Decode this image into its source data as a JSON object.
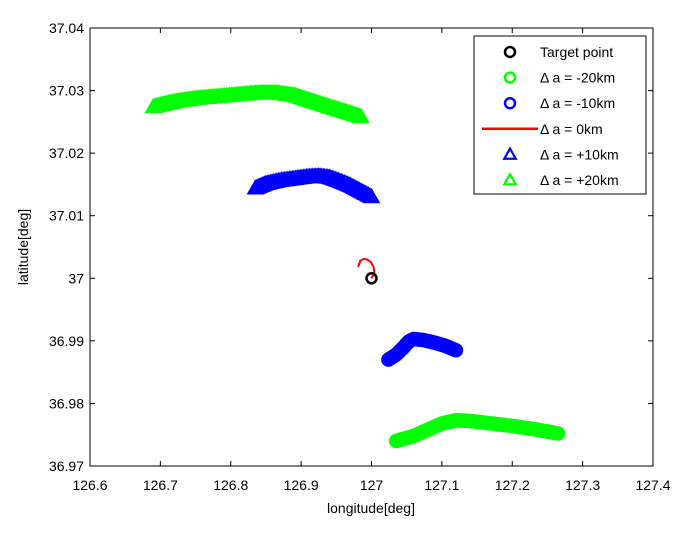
{
  "chart_data": {
    "type": "scatter",
    "xlabel": "longitude[deg]",
    "ylabel": "latitude[deg]",
    "xlim": [
      126.6,
      127.4
    ],
    "ylim": [
      36.97,
      37.04
    ],
    "xticks": [
      126.6,
      126.7,
      126.8,
      126.9,
      127,
      127.1,
      127.2,
      127.3,
      127.4
    ],
    "xtick_labels": [
      "126.6",
      "126.7",
      "126.8",
      "126.9",
      "127",
      "127.1",
      "127.2",
      "127.3",
      "127.4"
    ],
    "yticks": [
      36.97,
      36.98,
      36.99,
      37,
      37.01,
      37.02,
      37.03,
      37.04
    ],
    "ytick_labels": [
      "36.97",
      "36.98",
      "36.99",
      "37",
      "37.01",
      "37.02",
      "37.03",
      "37.04"
    ],
    "grid": false,
    "legend_position": "top-right",
    "series": [
      {
        "name": "Target point",
        "marker": "circle",
        "color": "#000000",
        "x": [
          127.0
        ],
        "y": [
          37.0
        ]
      },
      {
        "name": "Δ a = -20km",
        "marker": "circle",
        "color": "#00ff00",
        "x": [
          127.035,
          127.06,
          127.08,
          127.1,
          127.12,
          127.14,
          127.17,
          127.2,
          127.23,
          127.265
        ],
        "y": [
          36.974,
          36.9748,
          36.9758,
          36.9768,
          36.9773,
          36.9772,
          36.9768,
          36.9764,
          36.9759,
          36.9752
        ]
      },
      {
        "name": "Δ a = -10km",
        "marker": "circle",
        "color": "#0000ff",
        "x": [
          127.024,
          127.035,
          127.045,
          127.053,
          127.06,
          127.075,
          127.09,
          127.105,
          127.12
        ],
        "y": [
          36.987,
          36.9878,
          36.9889,
          36.9899,
          36.9903,
          36.9901,
          36.9897,
          36.9892,
          36.9885
        ]
      },
      {
        "name": "Δ a = 0km",
        "marker": "line",
        "color": "#ff0000",
        "x": [
          127.0,
          127.004,
          127.003,
          126.999,
          126.994,
          126.989,
          126.984,
          126.981
        ],
        "y": [
          37.0,
          37.0009,
          37.0018,
          37.0026,
          37.003,
          37.0031,
          37.0028,
          37.0018
        ]
      },
      {
        "name": "Δ a = +10km",
        "marker": "triangle",
        "color": "#0000ff",
        "x": [
          126.835,
          126.85,
          126.87,
          126.89,
          126.91,
          126.925,
          126.94,
          126.955,
          126.97,
          126.985,
          127.0
        ],
        "y": [
          37.0144,
          37.0151,
          37.0156,
          37.0159,
          37.0162,
          37.0163,
          37.0161,
          37.0155,
          37.0148,
          37.0139,
          37.013
        ]
      },
      {
        "name": "Δ a = +20km",
        "marker": "triangle",
        "color": "#00ff00",
        "x": [
          126.69,
          126.72,
          126.75,
          126.78,
          126.81,
          126.84,
          126.865,
          126.89,
          126.915,
          126.94,
          126.96,
          126.985
        ],
        "y": [
          37.0274,
          37.0282,
          37.0287,
          37.029,
          37.0293,
          37.0296,
          37.0296,
          37.0292,
          37.0283,
          37.0274,
          37.0267,
          37.0258
        ]
      }
    ]
  }
}
